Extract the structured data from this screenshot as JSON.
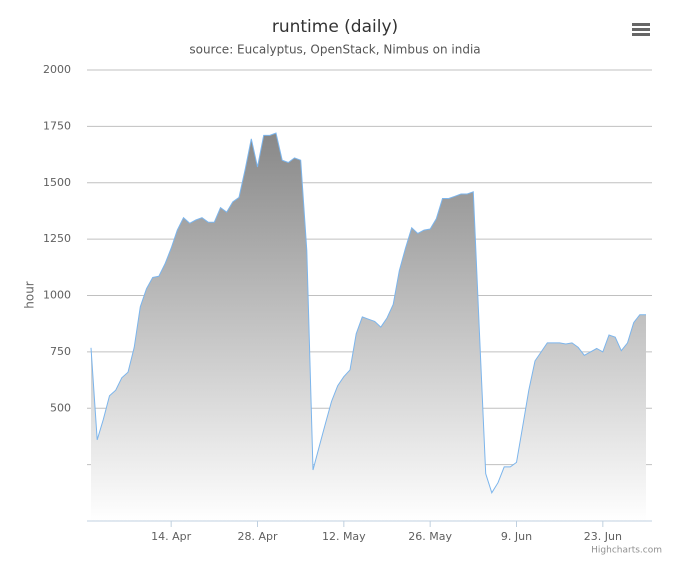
{
  "chart_data": {
    "type": "area",
    "title": "runtime (daily)",
    "subtitle": "source: Eucalyptus, OpenStack, Nimbus on india",
    "y_label": "hour",
    "credits": "Highcharts.com",
    "categories": [
      null,
      null,
      null,
      null,
      null,
      null,
      null,
      null,
      null,
      null,
      null,
      null,
      null,
      "14. Apr",
      null,
      null,
      null,
      null,
      null,
      null,
      null,
      null,
      null,
      null,
      null,
      null,
      null,
      "28. Apr",
      null,
      null,
      null,
      null,
      null,
      null,
      null,
      null,
      null,
      null,
      null,
      null,
      null,
      "12. May",
      null,
      null,
      null,
      null,
      null,
      null,
      null,
      null,
      null,
      null,
      null,
      null,
      null,
      "26. May",
      null,
      null,
      null,
      null,
      null,
      null,
      null,
      null,
      null,
      null,
      null,
      null,
      null,
      "9. Jun",
      null,
      null,
      null,
      null,
      null,
      null,
      null,
      null,
      null,
      null,
      null,
      null,
      null,
      "23. Jun",
      null,
      null,
      null,
      null,
      null,
      null,
      null
    ],
    "series": [
      {
        "name": "runtime",
        "color": "#7cb5ec",
        "fill_top": "#888888",
        "fill_bottom": "#ffffff",
        "values": [
          768,
          360,
          450,
          555,
          580,
          635,
          660,
          770,
          950,
          1030,
          1080,
          1085,
          1140,
          1210,
          1290,
          1345,
          1320,
          1335,
          1345,
          1325,
          1325,
          1390,
          1370,
          1415,
          1435,
          1560,
          1695,
          1570,
          1710,
          1710,
          1720,
          1600,
          1590,
          1610,
          1600,
          1200,
          226,
          330,
          430,
          530,
          600,
          640,
          670,
          830,
          905,
          895,
          885,
          860,
          900,
          960,
          1110,
          1210,
          1300,
          1275,
          1290,
          1295,
          1340,
          1430,
          1430,
          1440,
          1450,
          1450,
          1460,
          830,
          210,
          125,
          170,
          240,
          240,
          260,
          420,
          580,
          710,
          750,
          790,
          790,
          790,
          785,
          790,
          770,
          735,
          750,
          765,
          750,
          825,
          815,
          755,
          790,
          880,
          915,
          915
        ]
      }
    ],
    "ylim": [
      0,
      2000
    ],
    "yticks": [
      500,
      750,
      1000,
      1250,
      1500,
      1750,
      2000
    ],
    "unlabeled_yticks": [
      0,
      250
    ],
    "grid": true
  }
}
